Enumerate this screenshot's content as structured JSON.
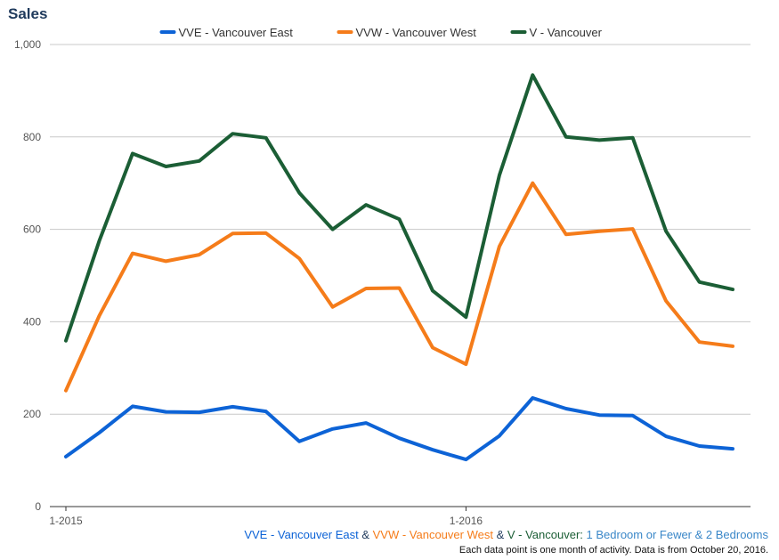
{
  "chart_data": {
    "type": "line",
    "title": "Sales",
    "xlabel": "",
    "ylabel": "",
    "ylim": [
      0,
      1000
    ],
    "yticks": [
      "0",
      "200",
      "400",
      "600",
      "800",
      "1,000"
    ],
    "xtick_labels": [
      {
        "index": 0,
        "label": "1-2015"
      },
      {
        "index": 12,
        "label": "1-2016"
      }
    ],
    "grid": true,
    "legend_position": "top",
    "series": [
      {
        "name": "VVE - Vancouver East",
        "color": "#0d63d6",
        "values": [
          108,
          160,
          217,
          205,
          204,
          216,
          206,
          141,
          168,
          181,
          148,
          123,
          102,
          153,
          235,
          212,
          198,
          197,
          152,
          131,
          125
        ]
      },
      {
        "name": "VVW - Vancouver West",
        "color": "#f57c1a",
        "values": [
          251,
          413,
          548,
          531,
          545,
          591,
          592,
          537,
          432,
          472,
          473,
          344,
          308,
          563,
          700,
          589,
          596,
          601,
          445,
          356,
          347
        ]
      },
      {
        "name": "V - Vancouver",
        "color": "#1b5e35",
        "values": [
          359,
          575,
          764,
          736,
          748,
          807,
          798,
          679,
          600,
          653,
          622,
          467,
          410,
          717,
          934,
          800,
          793,
          798,
          596,
          486,
          470
        ]
      }
    ]
  },
  "caption": {
    "part1": "VVE - Vancouver East",
    "sep1": " & ",
    "part2": "VVW - Vancouver West",
    "sep2": " & ",
    "part3": "V - Vancouver:",
    "part4": " 1 Bedroom or Fewer & 2 Bedrooms"
  },
  "note": "Each data point is one month of activity. Data is from October 20, 2016.",
  "colors": {
    "caption_vve": "#0d63d6",
    "caption_vvw": "#f57c1a",
    "caption_v": "#1b5e35",
    "caption_rest": "#3a87c8",
    "caption_sep": "#1f3a5c"
  }
}
